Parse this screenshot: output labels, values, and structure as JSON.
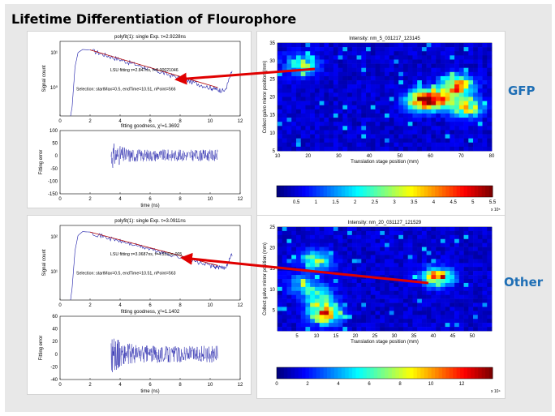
{
  "slide": {
    "title": "Lifetime Differentiation of Flourophore",
    "label_gfp": "GFP",
    "label_other": "Other",
    "colors": {
      "accent": "#1f6fb5",
      "arrow": "#e00000",
      "fit_line": "#b00000",
      "data_line": "#1a1aa8"
    }
  },
  "chart_data": [
    {
      "type": "line",
      "panel": "gfp-decay",
      "title": "polyfit(1): single Exp. τ=2.9228ns",
      "xlabel": "",
      "ylabel": "Signal count",
      "xlim": [
        0,
        12
      ],
      "yscale": "log",
      "xticks": [
        "0",
        "2",
        "4",
        "6",
        "8",
        "10",
        "12"
      ],
      "yticks": [
        "10¹",
        "10⁰"
      ],
      "annotations": [
        "LSU fitting τ=2.847ns, f=0.00021046",
        "Selection: startMax=0.5, endTime=10.51, nPoint=566"
      ],
      "series": [
        {
          "name": "data",
          "x": [
            0.7,
            0.8,
            1.0,
            1.2,
            1.5,
            2,
            3,
            4,
            5,
            6,
            7,
            8,
            9,
            10,
            10.5,
            11,
            11.5
          ],
          "y": [
            0.02,
            0.05,
            4,
            18,
            25,
            24,
            14,
            8.5,
            5.1,
            3.1,
            1.9,
            1.15,
            0.7,
            0.42,
            0.34,
            0.3,
            3
          ]
        },
        {
          "name": "fit",
          "x": [
            2,
            10.51
          ],
          "y": [
            24,
            0.42
          ]
        }
      ]
    },
    {
      "type": "line",
      "panel": "gfp-residual",
      "title": "fitting goodness, χ²=1.3692",
      "xlabel": "time (ns)",
      "ylabel": "Fitting error",
      "xlim": [
        0,
        12
      ],
      "ylim": [
        -150,
        100
      ],
      "xticks": [
        "0",
        "2",
        "4",
        "6",
        "8",
        "10",
        "12"
      ],
      "yticks": [
        "100",
        "50",
        "0",
        "-50",
        "-100",
        "-150"
      ],
      "series": [
        {
          "name": "residual",
          "x_start": 3.4,
          "x_end": 10.5,
          "amplitude": 38,
          "mean": 2
        }
      ]
    },
    {
      "type": "heatmap",
      "panel": "gfp-image",
      "title": "Intensity: nm_5_031217_123145",
      "xlabel": "Translation stage position (mm)",
      "ylabel": "Collect galvo mirror position (mm)",
      "xlim": [
        10,
        80
      ],
      "ylim": [
        5,
        35
      ],
      "xticks": [
        "10",
        "20",
        "30",
        "40",
        "50",
        "60",
        "70",
        "80"
      ],
      "yticks": [
        "35",
        "30",
        "25",
        "20",
        "15",
        "10",
        "5"
      ],
      "colorbar": {
        "range": [
          0,
          5.5
        ],
        "ticks": [
          "0.5",
          "1",
          "1.5",
          "2",
          "2.5",
          "3",
          "3.5",
          "4",
          "4.5",
          "5",
          "5.5"
        ],
        "exponent": "x 10⁵"
      },
      "hotspots": [
        {
          "x": 18,
          "y": 29,
          "v": 0.55
        },
        {
          "x": 57,
          "y": 19,
          "v": 0.95
        },
        {
          "x": 69,
          "y": 23,
          "v": 0.9
        },
        {
          "x": 63,
          "y": 19,
          "v": 0.7
        },
        {
          "x": 72,
          "y": 17,
          "v": 0.65
        }
      ]
    },
    {
      "type": "line",
      "panel": "other-decay",
      "title": "polyfit(1): single Exp. τ=3.0911ns",
      "xlabel": "",
      "ylabel": "Signal count",
      "xlim": [
        0,
        12
      ],
      "yscale": "log",
      "xticks": [
        "0",
        "2",
        "4",
        "6",
        "8",
        "10",
        "12"
      ],
      "yticks": [
        "10²",
        "10¹"
      ],
      "annotations": [
        "LSU fitting τ=3.0687ns, f=4.5531e-005",
        "Selection: startMax=0.5, endTime=10.51, nPoint=563"
      ],
      "series": [
        {
          "name": "data",
          "x": [
            0.7,
            0.8,
            1.0,
            1.2,
            1.5,
            2,
            3,
            4,
            5,
            6,
            7,
            8,
            9,
            10,
            10.5,
            11,
            11.5
          ],
          "y": [
            0.05,
            0.2,
            20,
            120,
            190,
            180,
            100,
            60,
            38,
            23,
            14,
            8.6,
            5.2,
            3.2,
            2.6,
            2.4,
            15
          ]
        },
        {
          "name": "fit",
          "x": [
            2,
            10.51
          ],
          "y": [
            180,
            3.2
          ]
        }
      ]
    },
    {
      "type": "line",
      "panel": "other-residual",
      "title": "fitting goodness, χ²=1.1402",
      "xlabel": "time (ns)",
      "ylabel": "Fitting error",
      "xlim": [
        0,
        12
      ],
      "ylim": [
        -40,
        60
      ],
      "xticks": [
        "0",
        "2",
        "4",
        "6",
        "8",
        "10",
        "12"
      ],
      "yticks": [
        "60",
        "40",
        "20",
        "0",
        "-20",
        "-40"
      ],
      "series": [
        {
          "name": "residual",
          "x_start": 3.4,
          "x_end": 10.5,
          "amplitude": 22,
          "mean": 0
        }
      ]
    },
    {
      "type": "heatmap",
      "panel": "other-image",
      "title": "Intensity: nm_20_031127_121529",
      "xlabel": "Translation stage position (mm)",
      "ylabel": "Collect galvo mirror position (mm)",
      "xlim": [
        0,
        55
      ],
      "ylim": [
        0,
        25
      ],
      "xticks": [
        "5",
        "10",
        "15",
        "20",
        "25",
        "30",
        "35",
        "40",
        "45",
        "50"
      ],
      "yticks": [
        "25",
        "20",
        "15",
        "10",
        "5"
      ],
      "colorbar": {
        "range": [
          0,
          14
        ],
        "ticks": [
          "0",
          "2",
          "4",
          "6",
          "8",
          "10",
          "12"
        ],
        "exponent": "x 10⁴"
      },
      "hotspots": [
        {
          "x": 12,
          "y": 4,
          "v": 0.9
        },
        {
          "x": 10,
          "y": 17,
          "v": 0.55
        },
        {
          "x": 41,
          "y": 13,
          "v": 0.8
        },
        {
          "x": 7,
          "y": 11,
          "v": 0.4
        },
        {
          "x": 11,
          "y": 8,
          "v": 0.45
        }
      ]
    }
  ]
}
